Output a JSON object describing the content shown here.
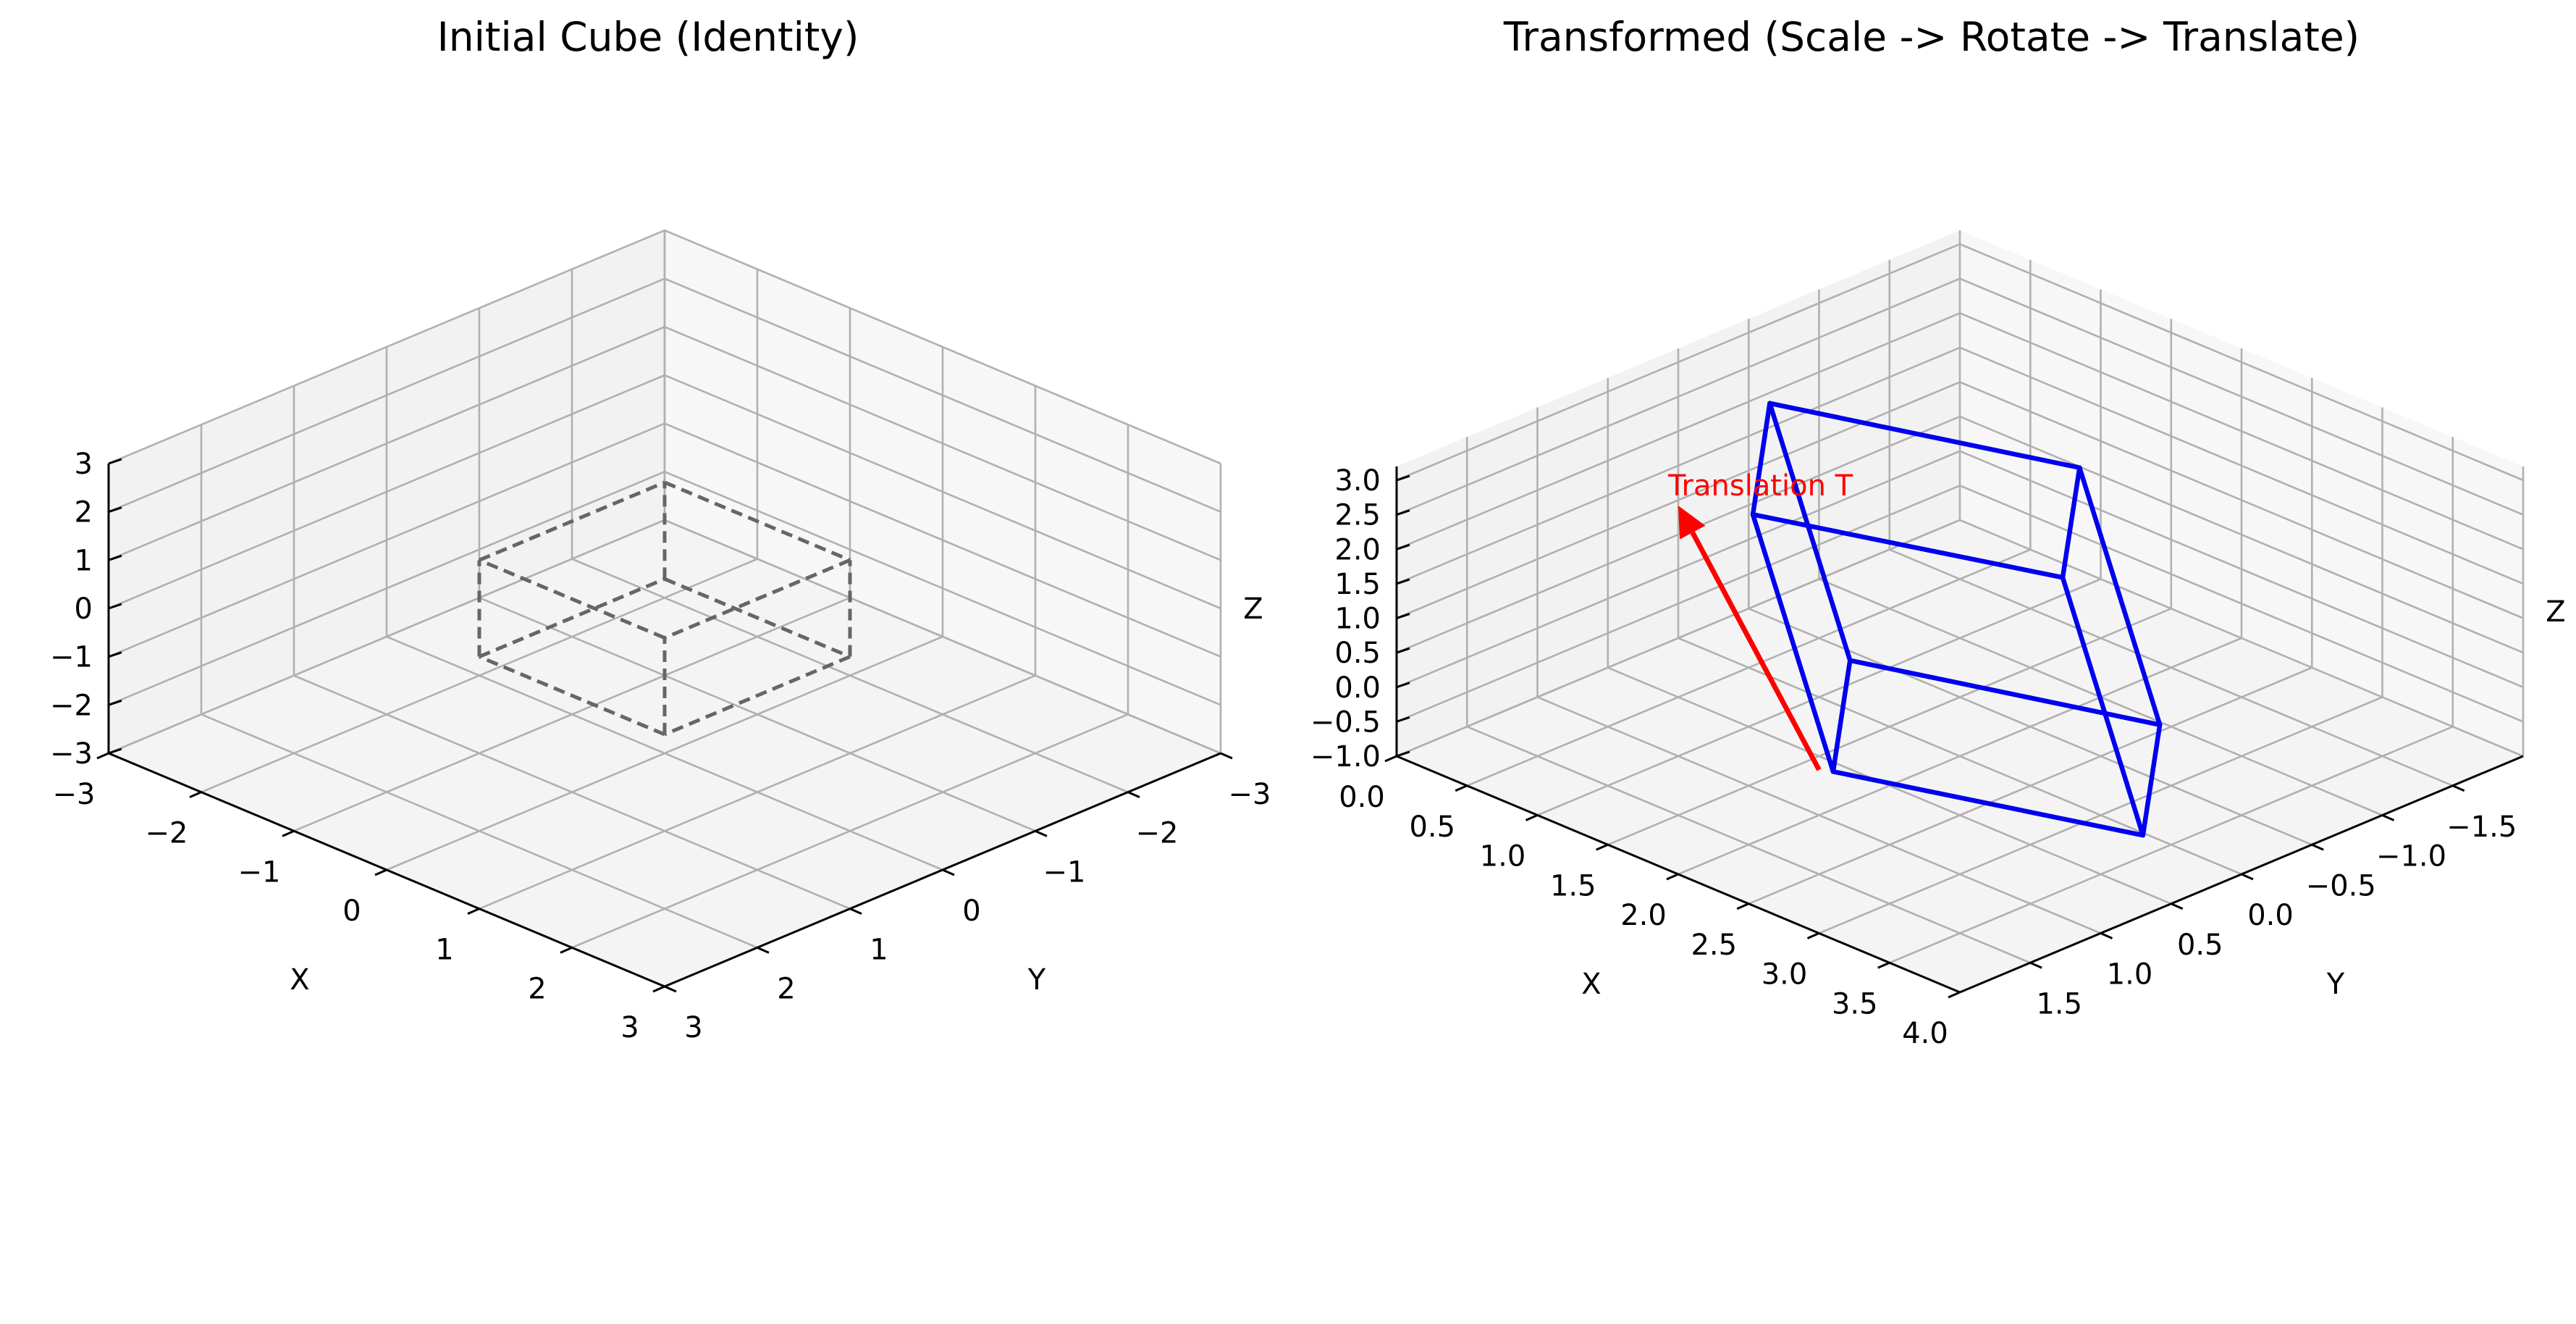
{
  "figure": {
    "background": "#ffffff",
    "pane_colors": {
      "back_left": "#f2f2f2",
      "back_right": "#f7f7f7",
      "floor": "#f4f4f4"
    },
    "grid_color": "#b0b0b0"
  },
  "chart_data": [
    {
      "type": "3d-wireframe",
      "title": "Initial Cube (Identity)",
      "xlabel": "X",
      "ylabel": "Y",
      "zlabel": "Z",
      "xlim": [
        -3,
        3
      ],
      "ylim": [
        -3,
        3
      ],
      "zlim": [
        -3,
        3
      ],
      "x_ticks": [
        "−3",
        "−2",
        "−1",
        "0",
        "1",
        "2",
        "3"
      ],
      "y_ticks": [
        "−3",
        "−2",
        "−1",
        "0",
        "1",
        "2",
        "3"
      ],
      "z_ticks": [
        "−3",
        "−2",
        "−1",
        "0",
        "1",
        "2",
        "3"
      ],
      "grid": true,
      "series": [
        {
          "style": "dashed",
          "color": "#666666",
          "vertices": [
            [
              -1,
              -1,
              -1
            ],
            [
              1,
              -1,
              -1
            ],
            [
              1,
              1,
              -1
            ],
            [
              -1,
              1,
              -1
            ],
            [
              -1,
              -1,
              1
            ],
            [
              1,
              -1,
              1
            ],
            [
              1,
              1,
              1
            ],
            [
              -1,
              1,
              1
            ]
          ],
          "edges": [
            [
              0,
              1
            ],
            [
              1,
              2
            ],
            [
              2,
              3
            ],
            [
              3,
              0
            ],
            [
              4,
              5
            ],
            [
              5,
              6
            ],
            [
              6,
              7
            ],
            [
              7,
              4
            ],
            [
              0,
              4
            ],
            [
              1,
              5
            ],
            [
              2,
              6
            ],
            [
              3,
              7
            ]
          ]
        }
      ]
    },
    {
      "type": "3d-wireframe",
      "title": "Transformed (Scale -> Rotate -> Translate)",
      "xlabel": "X",
      "ylabel": "Y",
      "zlabel": "Z",
      "xlim": [
        0,
        4
      ],
      "ylim": [
        -2,
        2
      ],
      "zlim": [
        -1,
        3.2
      ],
      "x_ticks": [
        "0.0",
        "0.5",
        "1.0",
        "1.5",
        "2.0",
        "2.5",
        "3.0",
        "3.5",
        "4.0"
      ],
      "y_ticks": [
        "−1.5",
        "−1.0",
        "−0.5",
        "0.0",
        "0.5",
        "1.0",
        "1.5"
      ],
      "z_ticks": [
        "−1.0",
        "−0.5",
        "0.0",
        "0.5",
        "1.0",
        "1.5",
        "2.0",
        "2.5",
        "3.0"
      ],
      "grid": true,
      "series": [
        {
          "style": "solid",
          "color": "#0000ee",
          "vertices": [
            [
              2.9,
              -0.52,
              -0.22
            ],
            [
              3.7,
              0.4,
              -0.35
            ],
            [
              2.3,
              1.2,
              0.06
            ],
            [
              1.5,
              0.28,
              0.2
            ],
            [
              1.6,
              -1.25,
              1.77
            ],
            [
              2.4,
              -0.33,
              1.65
            ],
            [
              1.0,
              0.47,
              2.05
            ],
            [
              0.2,
              -0.45,
              2.19
            ]
          ],
          "edges": [
            [
              0,
              1
            ],
            [
              1,
              2
            ],
            [
              2,
              3
            ],
            [
              3,
              0
            ],
            [
              4,
              5
            ],
            [
              5,
              6
            ],
            [
              6,
              7
            ],
            [
              7,
              4
            ],
            [
              0,
              4
            ],
            [
              1,
              5
            ],
            [
              2,
              6
            ],
            [
              3,
              7
            ]
          ]
        }
      ],
      "annotations": [
        {
          "type": "arrow",
          "label": "Translation T",
          "color": "#ff0000",
          "from": [
            2.2,
            1.2,
            0.0
          ],
          "to": [
            0,
            0,
            0.92
          ]
        }
      ]
    }
  ]
}
